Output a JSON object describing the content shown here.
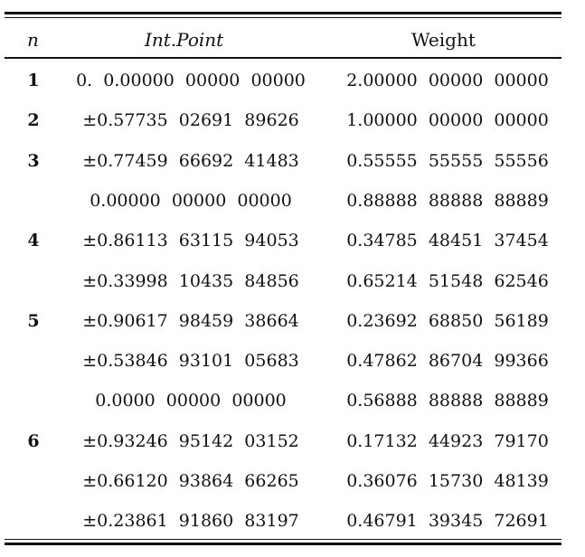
{
  "table": {
    "headers": {
      "n": "n",
      "int_point": "Int.Point",
      "weight": "Weight"
    },
    "rows": [
      {
        "n": "1",
        "int_point": "0.  0.00000  00000  00000",
        "weight": "2.00000  00000  00000"
      },
      {
        "n": "2",
        "int_point": "±0.57735  02691  89626",
        "weight": "1.00000  00000  00000"
      },
      {
        "n": "3",
        "int_point": "±0.77459  66692  41483",
        "weight": "0.55555  55555  55556"
      },
      {
        "n": "",
        "int_point": "0.00000  00000  00000",
        "weight": "0.88888  88888  88889"
      },
      {
        "n": "4",
        "int_point": "±0.86113  63115  94053",
        "weight": "0.34785  48451  37454"
      },
      {
        "n": "",
        "int_point": "±0.33998  10435  84856",
        "weight": "0.65214  51548  62546"
      },
      {
        "n": "5",
        "int_point": "±0.90617  98459  38664",
        "weight": "0.23692  68850  56189"
      },
      {
        "n": "",
        "int_point": "±0.53846  93101  05683",
        "weight": "0.47862  86704  99366"
      },
      {
        "n": "",
        "int_point": "0.0000  00000  00000",
        "weight": "0.56888  88888  88889"
      },
      {
        "n": "6",
        "int_point": "±0.93246  95142  03152",
        "weight": "0.17132  44923  79170"
      },
      {
        "n": "",
        "int_point": "±0.66120  93864  66265",
        "weight": "0.36076  15730  48139"
      },
      {
        "n": "",
        "int_point": "±0.23861  91860  83197",
        "weight": "0.46791  39345  72691"
      }
    ]
  }
}
